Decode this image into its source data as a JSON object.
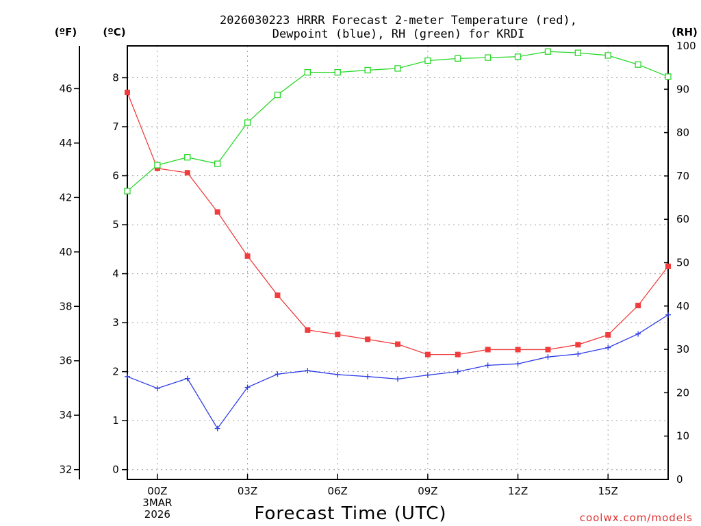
{
  "chart_data": {
    "type": "line",
    "title_line1": "2026030223 HRRR Forecast 2-meter Temperature (red),",
    "title_line2": "Dewpoint (blue), RH (green) for KRDI",
    "xlabel": "Forecast Time (UTC)",
    "credit": "coolwx.com/models",
    "unit_f": "(ºF)",
    "unit_c": "(ºC)",
    "unit_rh": "(RH)",
    "x": [
      -1,
      0,
      1,
      2,
      3,
      4,
      5,
      6,
      7,
      8,
      9,
      10,
      11,
      12,
      13,
      14,
      15,
      16,
      17
    ],
    "x_ticks": [
      {
        "x": 0,
        "lines": [
          "00Z",
          "3MAR",
          "2026"
        ]
      },
      {
        "x": 3,
        "lines": [
          "03Z"
        ]
      },
      {
        "x": 6,
        "lines": [
          "06Z"
        ]
      },
      {
        "x": 9,
        "lines": [
          "09Z"
        ]
      },
      {
        "x": 12,
        "lines": [
          "12Z"
        ]
      },
      {
        "x": 15,
        "lines": [
          "15Z"
        ]
      }
    ],
    "xlim": [
      -1,
      17
    ],
    "celsius_axis": {
      "ylim": [
        -0.2,
        8.65
      ],
      "ticks": [
        "0",
        "1",
        "2",
        "3",
        "4",
        "5",
        "6",
        "7",
        "8"
      ]
    },
    "fahrenheit_axis": {
      "ticks": [
        "32",
        "34",
        "36",
        "38",
        "40",
        "42",
        "44",
        "46"
      ]
    },
    "rh_axis": {
      "ylim": [
        0,
        100
      ],
      "ticks": [
        "0",
        "10",
        "20",
        "30",
        "40",
        "50",
        "60",
        "70",
        "80",
        "90",
        "100"
      ]
    },
    "series": [
      {
        "name": "Temperature",
        "axis": "C",
        "color": "#f03c3c",
        "marker": "filled-square",
        "values": [
          7.7,
          6.15,
          6.06,
          5.26,
          4.36,
          3.56,
          2.85,
          2.76,
          2.66,
          2.56,
          2.35,
          2.35,
          2.45,
          2.45,
          2.45,
          2.55,
          2.75,
          3.35,
          4.15
        ]
      },
      {
        "name": "Dewpoint",
        "axis": "C",
        "color": "#2d3ce6",
        "marker": "plus",
        "values": [
          1.9,
          1.66,
          1.86,
          0.84,
          1.68,
          1.95,
          2.02,
          1.94,
          1.9,
          1.85,
          1.93,
          2.0,
          2.13,
          2.16,
          2.3,
          2.36,
          2.49,
          2.77,
          3.16
        ]
      },
      {
        "name": "RH",
        "axis": "RH",
        "color": "#28d728",
        "marker": "open-square",
        "values": [
          66.5,
          72.5,
          74.3,
          72.8,
          82.3,
          88.7,
          93.9,
          93.9,
          94.4,
          94.8,
          96.6,
          97.1,
          97.3,
          97.5,
          98.7,
          98.4,
          97.8,
          95.7,
          92.9
        ]
      }
    ]
  }
}
